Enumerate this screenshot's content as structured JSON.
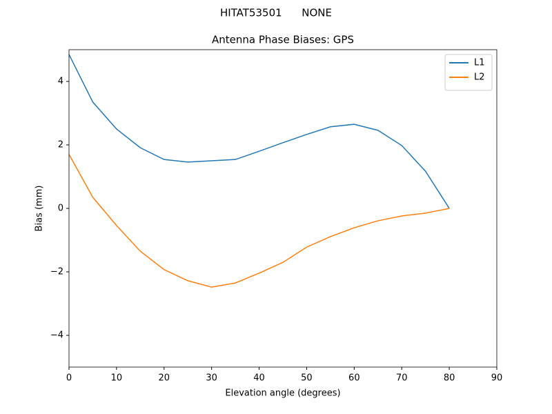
{
  "chart_data": {
    "type": "line",
    "suptitle": "HITAT53501      NONE",
    "title": "Antenna Phase Biases: GPS",
    "xlabel": "Elevation angle (degrees)",
    "ylabel": "Bias (mm)",
    "x": [
      0,
      5,
      10,
      15,
      20,
      25,
      30,
      35,
      40,
      45,
      50,
      55,
      60,
      65,
      70,
      75,
      80
    ],
    "series": [
      {
        "name": "L1",
        "color": "#1f77b4",
        "values": [
          4.85,
          3.35,
          2.5,
          1.91,
          1.54,
          1.46,
          1.5,
          1.54,
          1.8,
          2.07,
          2.33,
          2.57,
          2.65,
          2.46,
          1.98,
          1.17,
          0
        ]
      },
      {
        "name": "L2",
        "color": "#ff7f0e",
        "values": [
          1.7,
          0.35,
          -0.54,
          -1.35,
          -1.93,
          -2.28,
          -2.48,
          -2.35,
          -2.04,
          -1.7,
          -1.22,
          -0.89,
          -0.61,
          -0.39,
          -0.24,
          -0.15,
          0
        ]
      }
    ],
    "xlim": [
      0,
      90
    ],
    "xticks": [
      0,
      10,
      20,
      30,
      40,
      50,
      60,
      70,
      80,
      90
    ],
    "ylim": [
      -5,
      5
    ],
    "yticks": [
      {
        "value": -4,
        "label": "−4"
      },
      {
        "value": -2,
        "label": "−2"
      },
      0,
      2,
      4
    ],
    "legend": "upper right"
  }
}
